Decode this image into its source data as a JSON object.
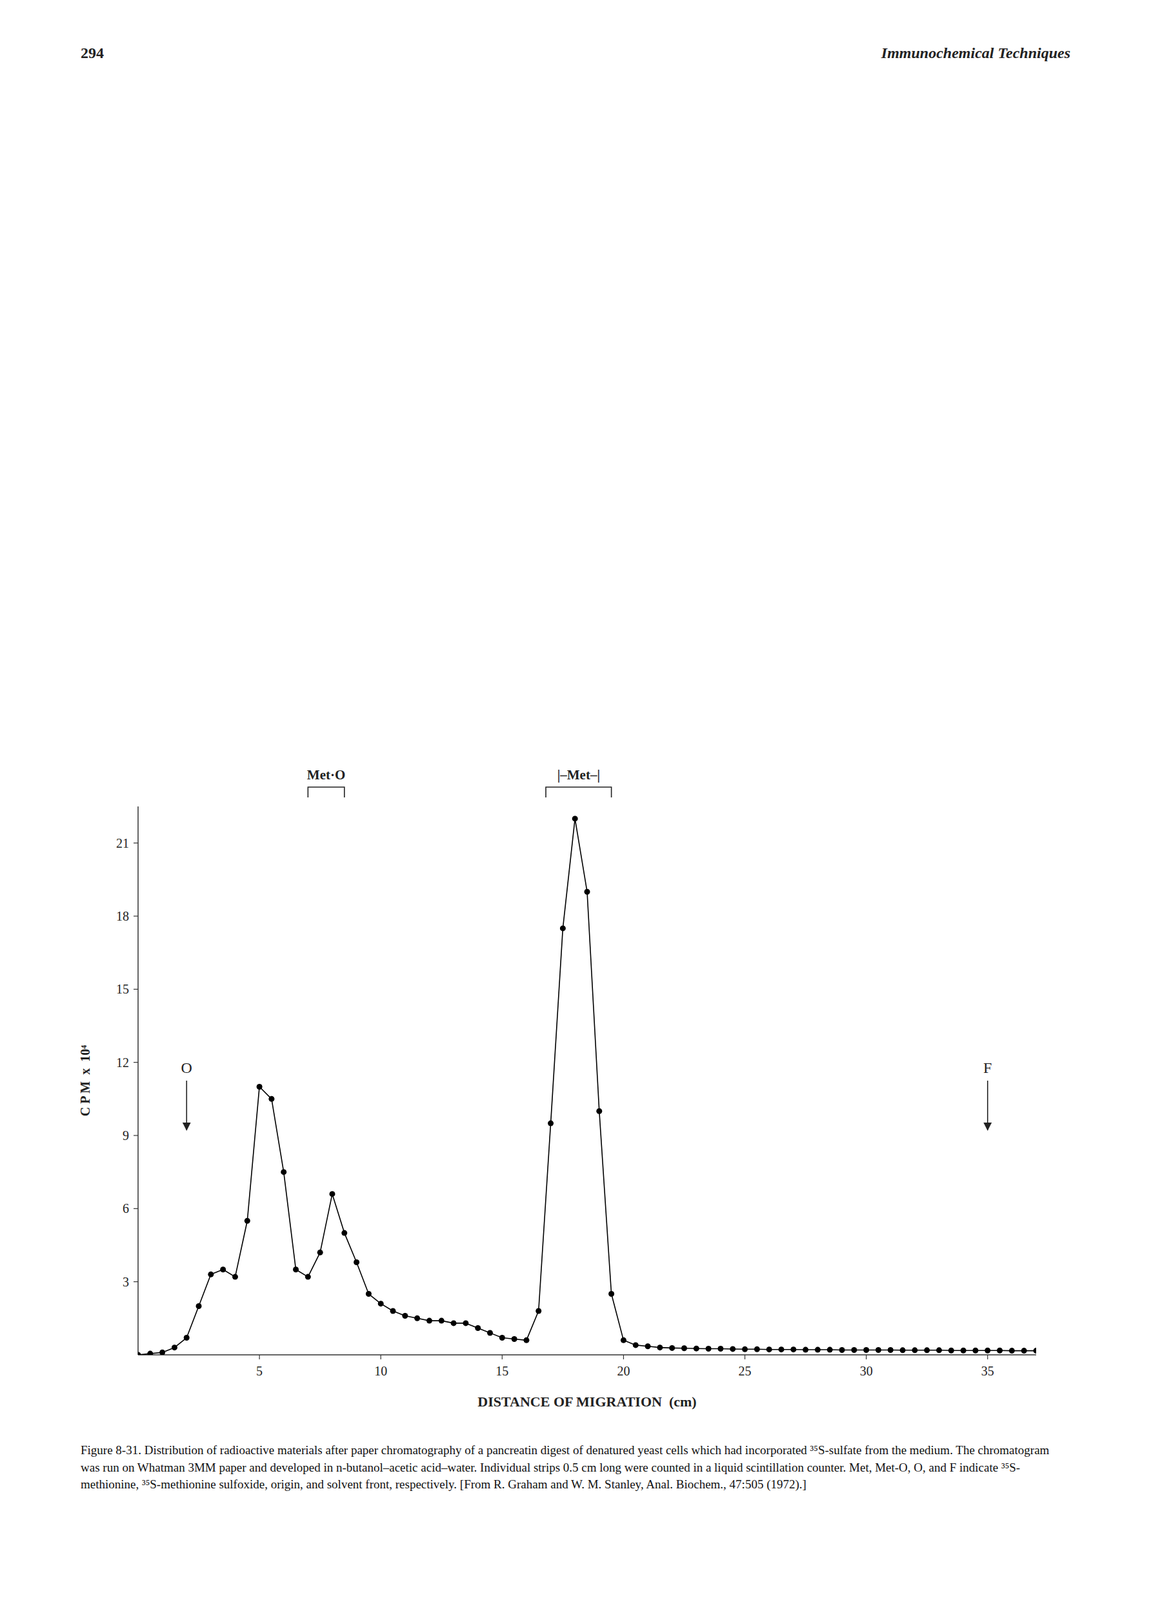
{
  "chart_data": {
    "type": "line",
    "header_left": "294",
    "header_right": "Immunochemical Techniques",
    "caption": "Figure 8-31.  Distribution of radioactive materials after paper chromatography of a pancreatin digest of denatured yeast cells which had incorporated ³⁵S-sulfate from the medium. The chromatogram was run on Whatman 3MM paper and developed in n-butanol–acetic acid–water. Individual strips 0.5 cm long were counted in a liquid scintillation counter. Met, Met-O, O, and F indicate ³⁵S-methionine, ³⁵S-methionine sulfoxide, origin, and solvent front, respectively. [From R. Graham and W. M. Stanley, Anal. Biochem., 47:505 (1972).]",
    "x_label": "DISTANCE OF MIGRATION  (cm)",
    "y_label": "C P M  x  10⁴",
    "x": [
      0,
      0.5,
      1.0,
      1.5,
      2.0,
      2.5,
      3.0,
      3.5,
      4.0,
      4.5,
      5.0,
      5.5,
      6.0,
      6.5,
      7.0,
      7.5,
      8.0,
      8.5,
      9.0,
      9.5,
      10.0,
      10.5,
      11.0,
      11.5,
      12.0,
      12.5,
      13.0,
      13.5,
      14.0,
      14.5,
      15.0,
      15.5,
      16.0,
      16.5,
      17.0,
      17.5,
      18.0,
      18.5,
      19.0,
      19.5,
      20.0,
      20.5,
      21.0,
      21.5,
      22.0,
      22.5,
      23.0,
      23.5,
      24.0,
      24.5,
      25.0,
      25.5,
      26.0,
      26.5,
      27.0,
      27.5,
      28.0,
      28.5,
      29.0,
      29.5,
      30.0,
      30.5,
      31.0,
      31.5,
      32.0,
      32.5,
      33.0,
      33.5,
      34.0,
      34.5,
      35.0,
      35.5,
      36.0,
      36.5,
      37.0
    ],
    "values": [
      0.0,
      0.05,
      0.1,
      0.3,
      0.7,
      2.0,
      3.3,
      3.5,
      3.2,
      5.5,
      11.0,
      10.5,
      7.5,
      3.5,
      3.2,
      4.2,
      6.6,
      5.0,
      3.8,
      2.5,
      2.1,
      1.8,
      1.6,
      1.5,
      1.4,
      1.4,
      1.3,
      1.3,
      1.1,
      0.9,
      0.7,
      0.65,
      0.6,
      1.8,
      9.5,
      17.5,
      22.0,
      19.0,
      10.0,
      2.5,
      0.6,
      0.4,
      0.35,
      0.3,
      0.28,
      0.27,
      0.26,
      0.25,
      0.25,
      0.24,
      0.23,
      0.23,
      0.22,
      0.22,
      0.22,
      0.21,
      0.21,
      0.21,
      0.2,
      0.2,
      0.2,
      0.2,
      0.2,
      0.19,
      0.19,
      0.19,
      0.19,
      0.18,
      0.18,
      0.18,
      0.18,
      0.18,
      0.17,
      0.17,
      0.17
    ],
    "color": "#000000",
    "marker": "circle",
    "xlim": [
      0,
      37
    ],
    "ylim": [
      0,
      22.5
    ],
    "xticks": [
      5,
      10,
      15,
      20,
      25,
      30,
      35
    ],
    "yticks": [
      3,
      6,
      9,
      12,
      15,
      18,
      21
    ],
    "grid": false,
    "annotations": [
      {
        "text": "O",
        "x": 2.0
      },
      {
        "text": "F",
        "x": 35.0
      },
      {
        "text": "Met·O",
        "x1": 7.0,
        "x2": 8.5
      },
      {
        "text": "|–Met–|",
        "x1": 16.8,
        "x2": 19.5
      }
    ]
  }
}
